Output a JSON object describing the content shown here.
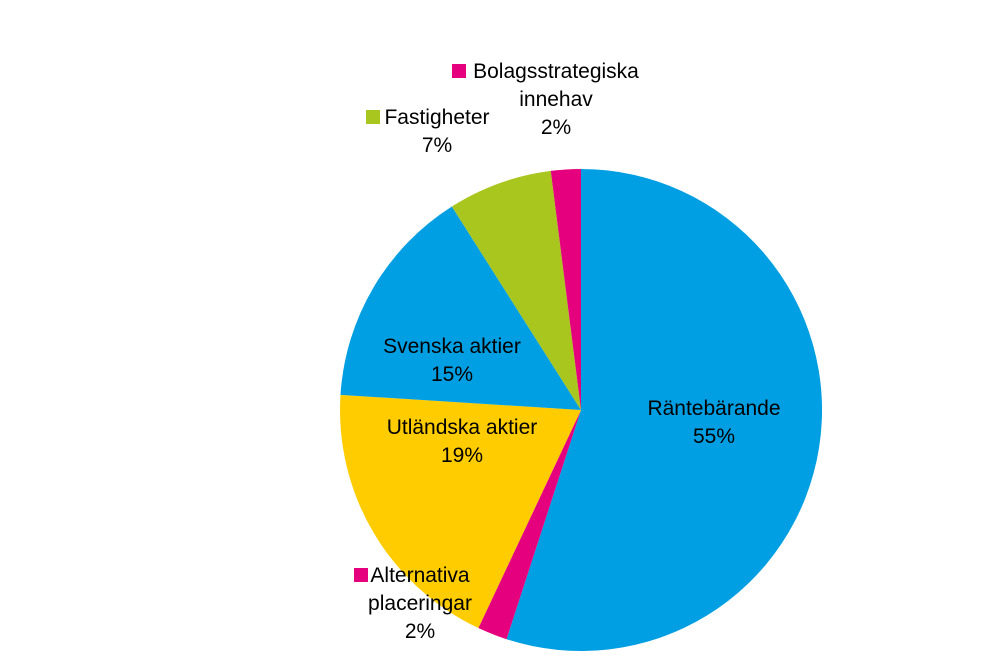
{
  "chart_data": {
    "type": "pie",
    "title": "",
    "categories": [
      "Räntebärande",
      "Alternativa placeringar",
      "Utländska aktier",
      "Svenska aktier",
      "Fastigheter",
      "Bolagsstrategiska innehav"
    ],
    "values": [
      55,
      2,
      19,
      15,
      7,
      2
    ],
    "value_labels": [
      "55%",
      "2%",
      "19%",
      "15%",
      "7%",
      "2%"
    ],
    "label_lines": [
      [
        "Räntebärande"
      ],
      [
        "Alternativa",
        "placeringar"
      ],
      [
        "Utländska aktier"
      ],
      [
        "Svenska aktier"
      ],
      [
        "Fastigheter"
      ],
      [
        "Bolagsstrategiska",
        "innehav"
      ]
    ],
    "colors": [
      "#009FE3",
      "#E5007D",
      "#FFCC00",
      "#009FE3",
      "#A9C61E",
      "#E5007D"
    ],
    "start_angle": "12 o'clock",
    "direction": "clockwise",
    "legend": "none"
  }
}
